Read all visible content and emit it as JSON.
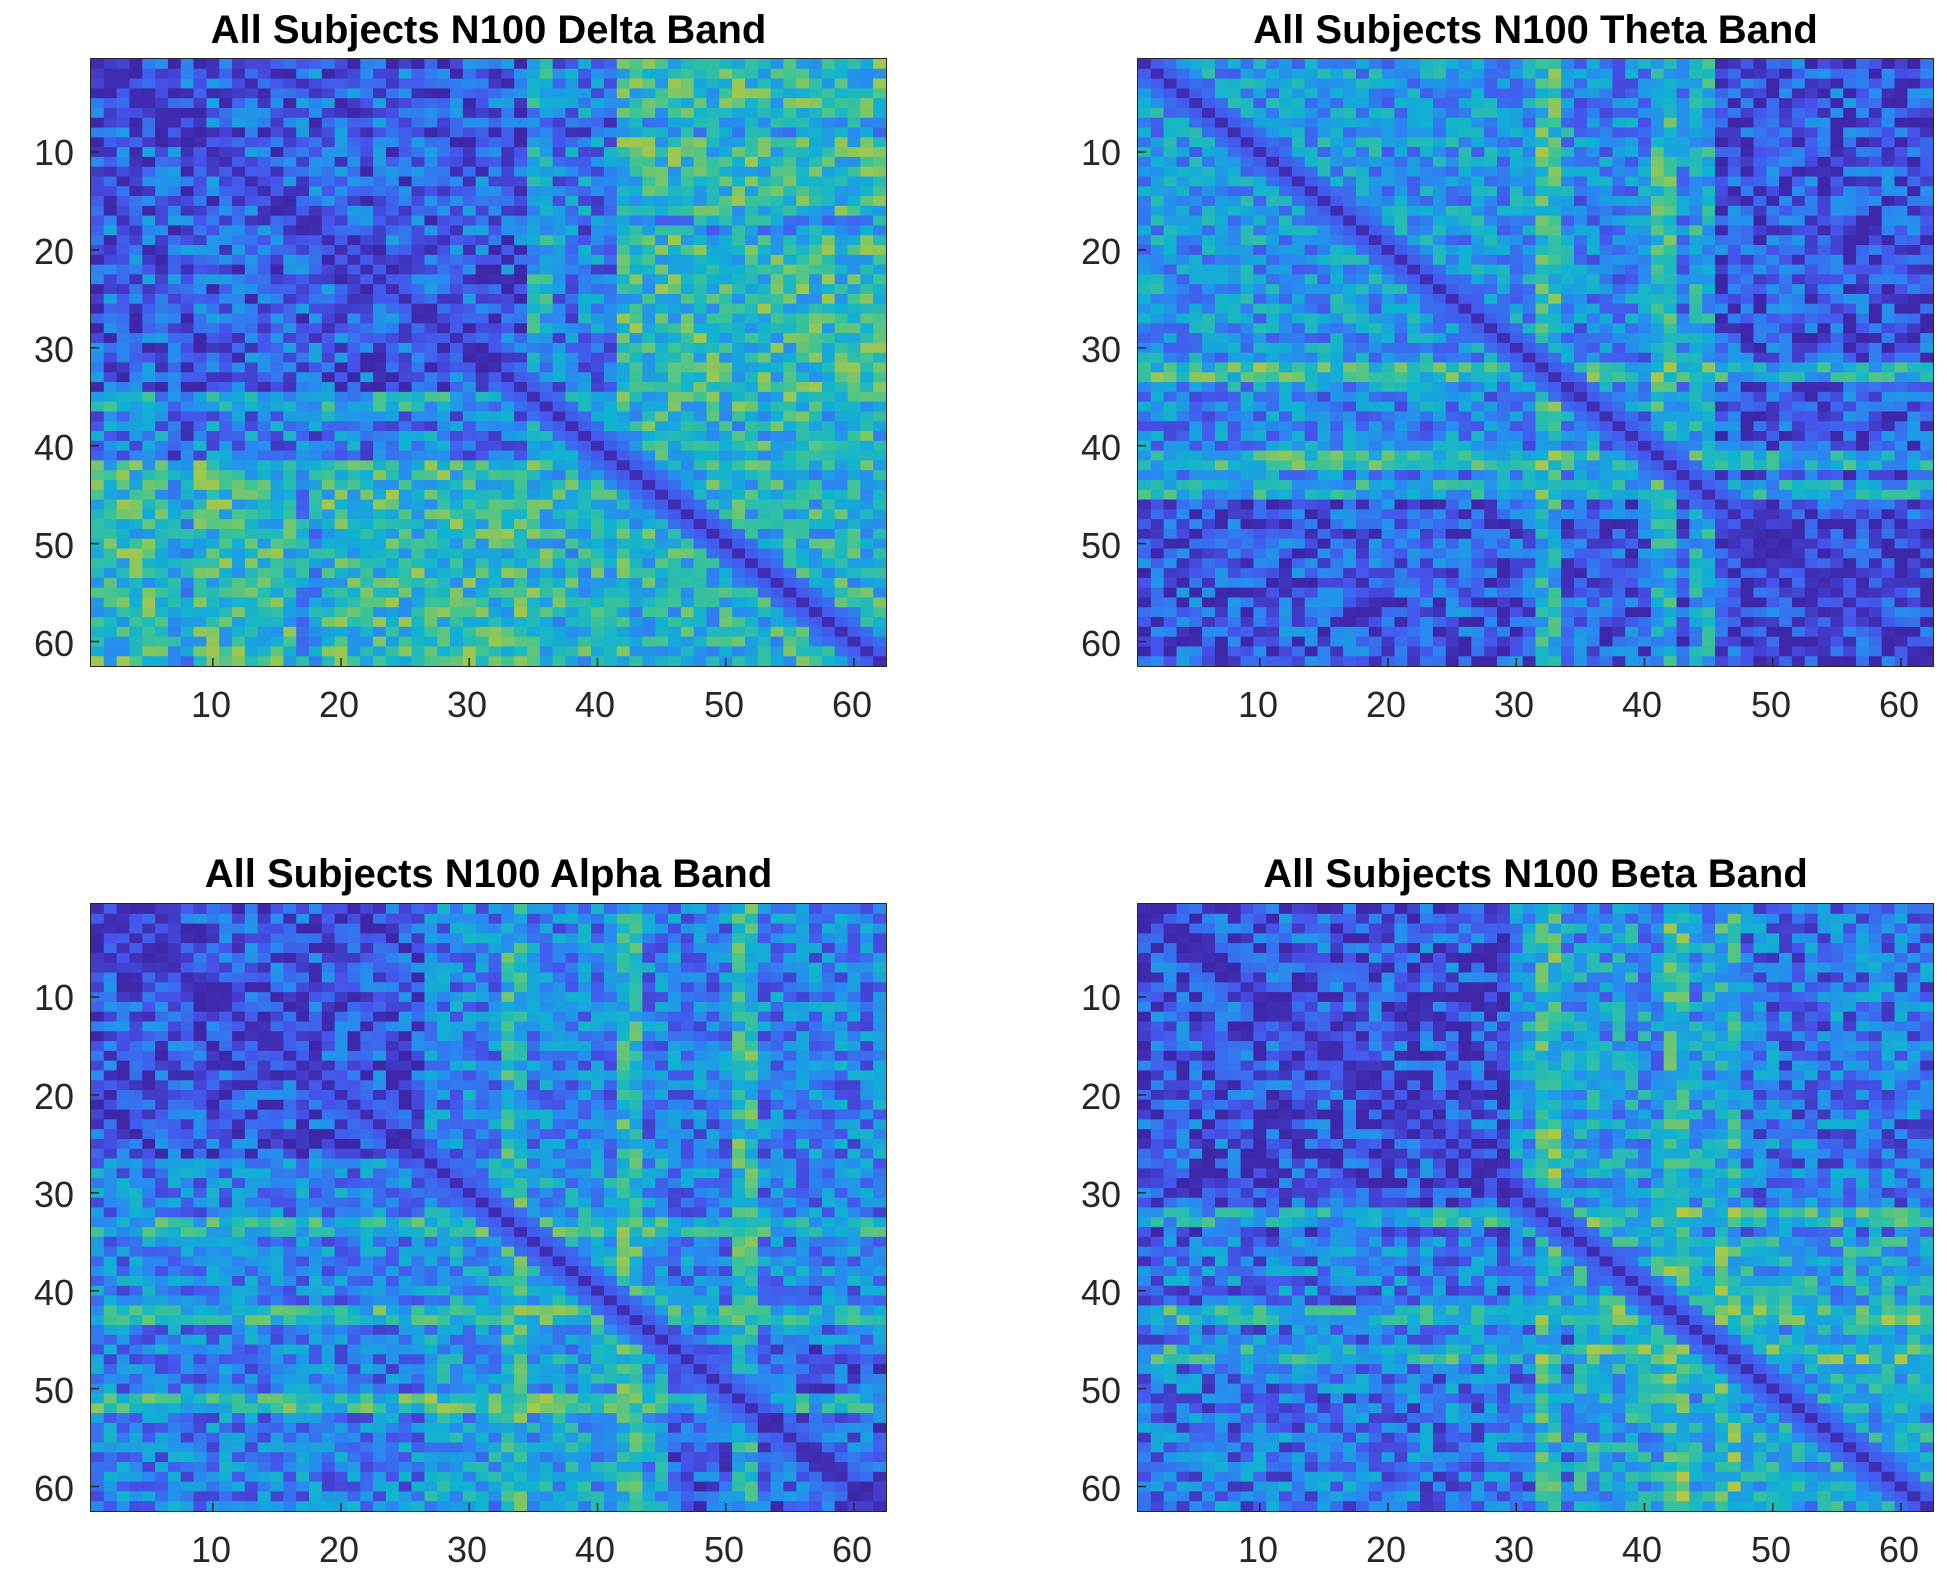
{
  "chart_data": [
    {
      "type": "heatmap",
      "title": "All Subjects N100 Delta Band",
      "matrix_size": 62,
      "xlim": [
        0.5,
        62.5
      ],
      "ylim": [
        0.5,
        62.5
      ],
      "x_ticks": [
        10,
        20,
        30,
        40,
        50,
        60
      ],
      "y_ticks": [
        10,
        20,
        30,
        40,
        50,
        60
      ],
      "x_tick_labels": [
        "10",
        "20",
        "30",
        "40",
        "50",
        "60"
      ],
      "y_tick_labels": [
        "10",
        "20",
        "30",
        "40",
        "50",
        "60"
      ],
      "colormap": "parula",
      "color_range": [
        0,
        1
      ],
      "pattern": {
        "seed": 11,
        "noise": 0.22,
        "base": 0.28,
        "blocks": [
          {
            "r": [
              1,
              62
            ],
            "c": [
              42,
              62
            ],
            "v": 0.62
          },
          {
            "r": [
              42,
              62
            ],
            "c": [
              1,
              42
            ],
            "v": 0.62
          },
          {
            "r": [
              35,
              62
            ],
            "c": [
              35,
              62
            ],
            "v": 0.45
          },
          {
            "r": [
              1,
              34
            ],
            "c": [
              1,
              34
            ],
            "v": 0.12
          }
        ],
        "bands": [
          {
            "axis": "both",
            "at": 7,
            "v": 0.18
          },
          {
            "axis": "both",
            "at": 17,
            "v": 0.22
          },
          {
            "axis": "both",
            "at": 35,
            "v": 0.55
          }
        ]
      }
    },
    {
      "type": "heatmap",
      "title": "All Subjects N100 Theta Band",
      "matrix_size": 62,
      "xlim": [
        0.5,
        62.5
      ],
      "ylim": [
        0.5,
        62.5
      ],
      "x_ticks": [
        10,
        20,
        30,
        40,
        50,
        60
      ],
      "y_ticks": [
        10,
        20,
        30,
        40,
        50,
        60
      ],
      "x_tick_labels": [
        "10",
        "20",
        "30",
        "40",
        "50",
        "60"
      ],
      "y_tick_labels": [
        "10",
        "20",
        "30",
        "40",
        "50",
        "60"
      ],
      "colormap": "parula",
      "color_range": [
        0,
        1
      ],
      "pattern": {
        "seed": 23,
        "noise": 0.2,
        "base": 0.3,
        "blocks": [
          {
            "r": [
              1,
              34
            ],
            "c": [
              1,
              34
            ],
            "v": 0.38
          },
          {
            "r": [
              44,
              62
            ],
            "c": [
              1,
              62
            ],
            "v": 0.12
          },
          {
            "r": [
              1,
              62
            ],
            "c": [
              44,
              62
            ],
            "v": 0.1
          }
        ],
        "bands": [
          {
            "axis": "both",
            "at": 32,
            "v": 0.75
          },
          {
            "axis": "both",
            "at": 41,
            "v": 0.72
          },
          {
            "axis": "both",
            "at": 44,
            "v": 0.7
          }
        ]
      }
    },
    {
      "type": "heatmap",
      "title": "All Subjects N100 Alpha Band",
      "matrix_size": 62,
      "xlim": [
        0.5,
        62.5
      ],
      "ylim": [
        0.5,
        62.5
      ],
      "x_ticks": [
        10,
        20,
        30,
        40,
        50,
        60
      ],
      "y_ticks": [
        10,
        20,
        30,
        40,
        50,
        60
      ],
      "x_tick_labels": [
        "10",
        "20",
        "30",
        "40",
        "50",
        "60"
      ],
      "y_tick_labels": [
        "10",
        "20",
        "30",
        "40",
        "50",
        "60"
      ],
      "colormap": "parula",
      "color_range": [
        0,
        1
      ],
      "pattern": {
        "seed": 37,
        "noise": 0.2,
        "base": 0.28,
        "blocks": [
          {
            "r": [
              1,
              26
            ],
            "c": [
              1,
              26
            ],
            "v": 0.1
          },
          {
            "r": [
              27,
              62
            ],
            "c": [
              27,
              45
            ],
            "v": 0.42
          },
          {
            "r": [
              46,
              62
            ],
            "c": [
              46,
              62
            ],
            "v": 0.15
          }
        ],
        "bands": [
          {
            "axis": "both",
            "at": 42,
            "v": 0.72
          },
          {
            "axis": "both",
            "at": 51,
            "v": 0.75
          },
          {
            "axis": "both",
            "at": 33,
            "v": 0.68
          }
        ]
      }
    },
    {
      "type": "heatmap",
      "title": "All Subjects N100 Beta Band",
      "matrix_size": 62,
      "xlim": [
        0.5,
        62.5
      ],
      "ylim": [
        0.5,
        62.5
      ],
      "x_ticks": [
        10,
        20,
        30,
        40,
        50,
        60
      ],
      "y_ticks": [
        10,
        20,
        30,
        40,
        50,
        60
      ],
      "x_tick_labels": [
        "10",
        "20",
        "30",
        "40",
        "50",
        "60"
      ],
      "y_tick_labels": [
        "10",
        "20",
        "30",
        "40",
        "50",
        "60"
      ],
      "colormap": "parula",
      "color_range": [
        0,
        1
      ],
      "pattern": {
        "seed": 53,
        "noise": 0.22,
        "base": 0.25,
        "blocks": [
          {
            "r": [
              1,
              34
            ],
            "c": [
              1,
              30
            ],
            "v": 0.1
          },
          {
            "r": [
              35,
              62
            ],
            "c": [
              35,
              62
            ],
            "v": 0.48
          },
          {
            "r": [
              1,
              34
            ],
            "c": [
              30,
              45
            ],
            "v": 0.4
          }
        ],
        "bands": [
          {
            "axis": "both",
            "at": 32,
            "v": 0.72
          },
          {
            "axis": "both",
            "at": 42,
            "v": 0.7
          },
          {
            "axis": "both",
            "at": 46,
            "v": 0.68
          }
        ]
      }
    }
  ]
}
